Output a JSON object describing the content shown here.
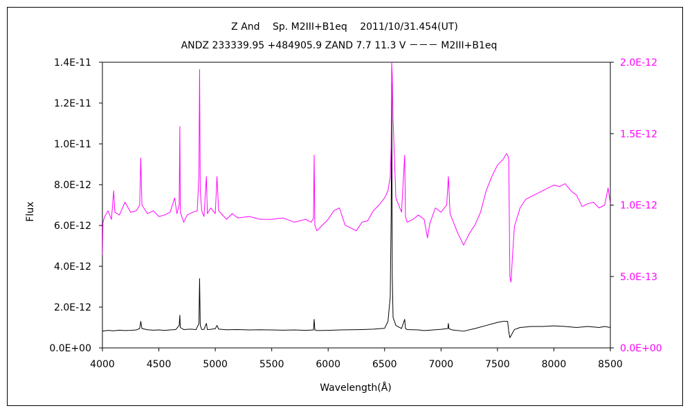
{
  "chart_data": {
    "type": "line",
    "title": "Z And　 Sp. M2III+B1eq　 2011/10/31.454(UT)",
    "subtitle": "ANDZ 233339.95 +484905.9 ZAND 7.7 11.3 V －－－ M2III+B1eq",
    "xlabel": "Wavelength(Å)",
    "ylabel": "Flux",
    "y2label": "",
    "xlim": [
      4000,
      8500
    ],
    "ylim": [
      0,
      1.4e-11
    ],
    "y2lim": [
      0,
      2e-12
    ],
    "grid": false,
    "legend": "none",
    "x_ticks": [
      "4000",
      "4500",
      "5000",
      "5500",
      "6000",
      "6500",
      "7000",
      "7500",
      "8000",
      "8500"
    ],
    "y_ticks": [
      "0.0E+00",
      "2.0E-12",
      "4.0E-12",
      "6.0E-12",
      "8.0E-12",
      "1.0E-11",
      "1.2E-11",
      "1.4E-11"
    ],
    "y2_ticks": [
      "0.0E+00",
      "5.0E-13",
      "1.0E-12",
      "1.5E-12",
      "2.0E-12"
    ],
    "colors": {
      "primary": "#000000",
      "secondary": "#ff00ff"
    },
    "series": [
      {
        "axis": "left",
        "color": "#000000",
        "x": [
          4000,
          4050,
          4100,
          4150,
          4200,
          4250,
          4300,
          4330,
          4340,
          4350,
          4400,
          4450,
          4500,
          4550,
          4600,
          4650,
          4680,
          4686,
          4690,
          4720,
          4780,
          4830,
          4855,
          4861,
          4867,
          4880,
          4900,
          4921,
          4930,
          4960,
          5000,
          5015,
          5030,
          5100,
          5200,
          5300,
          5400,
          5500,
          5600,
          5700,
          5800,
          5870,
          5876,
          5882,
          5900,
          6000,
          6100,
          6200,
          6300,
          6400,
          6450,
          6500,
          6530,
          6550,
          6558,
          6563,
          6568,
          6575,
          6600,
          6650,
          6678,
          6685,
          6700,
          6800,
          6850,
          6900,
          7000,
          7060,
          7065,
          7070,
          7100,
          7200,
          7300,
          7400,
          7500,
          7550,
          7590,
          7600,
          7610,
          7625,
          7650,
          7700,
          7800,
          7900,
          8000,
          8100,
          8200,
          8300,
          8400,
          8450,
          8500
        ],
        "y": [
          8.2e-13,
          8.6e-13,
          8.4e-13,
          8.7e-13,
          8.5e-13,
          8.6e-13,
          8.8e-13,
          9.5e-13,
          1.3e-12,
          9.5e-13,
          8.9e-13,
          8.7e-13,
          8.8e-13,
          8.6e-13,
          8.8e-13,
          9e-13,
          1.1e-12,
          1.6e-12,
          1e-12,
          9e-13,
          9.2e-13,
          9e-13,
          1.2e-12,
          3.4e-12,
          1.1e-12,
          9e-13,
          9.1e-13,
          1.2e-12,
          9e-13,
          9.1e-13,
          9.4e-13,
          1.1e-12,
          9.2e-13,
          8.9e-13,
          9e-13,
          8.8e-13,
          8.9e-13,
          8.8e-13,
          8.7e-13,
          8.8e-13,
          8.6e-13,
          8.8e-13,
          1.4e-12,
          8.8e-13,
          8.5e-13,
          8.6e-13,
          8.8e-13,
          8.9e-13,
          9e-13,
          9.2e-13,
          9.4e-13,
          9.6e-13,
          1.3e-12,
          2.5e-12,
          6.5e-12,
          1.3e-11,
          3.5e-12,
          1.5e-12,
          1.1e-12,
          9.5e-13,
          1.4e-12,
          9.5e-13,
          9e-13,
          8.8e-13,
          8.5e-13,
          8.7e-13,
          9.1e-13,
          9.5e-13,
          1.2e-12,
          9.4e-13,
          8.8e-13,
          8.2e-13,
          9.5e-13,
          1.1e-12,
          1.25e-12,
          1.3e-12,
          1.3e-12,
          8e-13,
          5e-13,
          6.5e-13,
          9e-13,
          1e-12,
          1.05e-12,
          1.05e-12,
          1.08e-12,
          1.05e-12,
          1e-12,
          1.05e-12,
          1e-12,
          1.05e-12,
          1e-12
        ]
      },
      {
        "axis": "right",
        "color": "#ff00ff",
        "x": [
          4000,
          4005,
          4020,
          4050,
          4080,
          4100,
          4110,
          4150,
          4200,
          4250,
          4300,
          4330,
          4340,
          4350,
          4400,
          4450,
          4500,
          4550,
          4600,
          4640,
          4660,
          4680,
          4686,
          4690,
          4720,
          4750,
          4800,
          4840,
          4855,
          4861,
          4867,
          4880,
          4900,
          4921,
          4930,
          4960,
          5000,
          5015,
          5030,
          5100,
          5150,
          5200,
          5300,
          5400,
          5500,
          5600,
          5700,
          5800,
          5850,
          5870,
          5876,
          5882,
          5900,
          5950,
          6000,
          6050,
          6100,
          6150,
          6200,
          6250,
          6300,
          6350,
          6400,
          6450,
          6500,
          6530,
          6550,
          6558,
          6563,
          6568,
          6575,
          6600,
          6650,
          6678,
          6685,
          6700,
          6750,
          6800,
          6850,
          6880,
          6900,
          6950,
          7000,
          7050,
          7065,
          7080,
          7100,
          7150,
          7200,
          7250,
          7300,
          7350,
          7400,
          7450,
          7500,
          7550,
          7580,
          7590,
          7600,
          7610,
          7620,
          7630,
          7650,
          7700,
          7750,
          7800,
          7850,
          7900,
          7950,
          8000,
          8050,
          8100,
          8150,
          8200,
          8250,
          8300,
          8350,
          8400,
          8450,
          8480,
          8500
        ],
        "y": [
          6.5e-13,
          8.8e-13,
          9.2e-13,
          9.6e-13,
          9e-13,
          1.1e-12,
          9.5e-13,
          9.3e-13,
          1.02e-12,
          9.5e-13,
          9.6e-13,
          1e-12,
          1.33e-12,
          1e-12,
          9.4e-13,
          9.6e-13,
          9.2e-13,
          9.3e-13,
          9.5e-13,
          1.05e-12,
          9.4e-13,
          1e-12,
          1.55e-12,
          9.5e-13,
          8.8e-13,
          9.3e-13,
          9.5e-13,
          9.6e-13,
          1.2e-12,
          1.95e-12,
          1.1e-12,
          9.6e-13,
          9.2e-13,
          1.2e-12,
          9.4e-13,
          9.8e-13,
          9.4e-13,
          1.2e-12,
          9.6e-13,
          9e-13,
          9.4e-13,
          9.1e-13,
          9.2e-13,
          9e-13,
          9e-13,
          9.1e-13,
          8.8e-13,
          9e-13,
          8.8e-13,
          9.1e-13,
          1.35e-12,
          8.6e-13,
          8.2e-13,
          8.6e-13,
          9e-13,
          9.6e-13,
          9.8e-13,
          8.6e-13,
          8.4e-13,
          8.2e-13,
          8.8e-13,
          8.9e-13,
          9.6e-13,
          1e-12,
          1.05e-12,
          1.1e-12,
          1.2e-12,
          1.4e-12,
          2e-12,
          1.9e-12,
          1.6e-12,
          1.05e-12,
          9.5e-13,
          1.35e-12,
          9.2e-13,
          8.8e-13,
          9e-13,
          9.3e-13,
          9e-13,
          7.7e-13,
          8.7e-13,
          9.8e-13,
          9.5e-13,
          1e-12,
          1.2e-12,
          9.4e-13,
          9e-13,
          8e-13,
          7.2e-13,
          8e-13,
          8.6e-13,
          9.5e-13,
          1.1e-12,
          1.2e-12,
          1.28e-12,
          1.32e-12,
          1.36e-12,
          1.35e-12,
          1.32e-12,
          5e-13,
          4.6e-13,
          6e-13,
          8.5e-13,
          9.8e-13,
          1.04e-12,
          1.06e-12,
          1.08e-12,
          1.1e-12,
          1.12e-12,
          1.14e-12,
          1.13e-12,
          1.15e-12,
          1.1e-12,
          1.07e-12,
          9.9e-13,
          1.01e-12,
          1.02e-12,
          9.8e-13,
          1e-12,
          1.12e-12,
          1.01e-12
        ]
      }
    ]
  }
}
